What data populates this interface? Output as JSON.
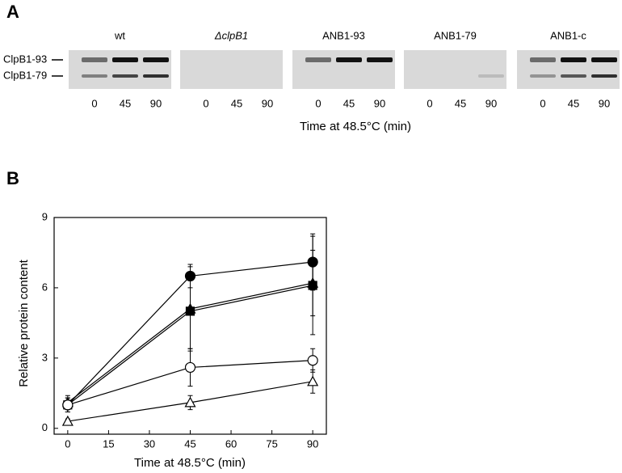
{
  "panel_a": {
    "label": "A",
    "blots": [
      {
        "title": "wt",
        "lanes": [
          "0",
          "45",
          "90"
        ]
      },
      {
        "title": "ΔclpB1",
        "lanes": [
          "0",
          "45",
          "90"
        ]
      },
      {
        "title": "ANB1-93",
        "lanes": [
          "0",
          "45",
          "90"
        ]
      },
      {
        "title": "ANB1-79",
        "lanes": [
          "0",
          "45",
          "90"
        ]
      },
      {
        "title": "ANB1-c",
        "lanes": [
          "0",
          "45",
          "90"
        ]
      }
    ],
    "rows": [
      "ClpB1-93",
      "ClpB1-79"
    ],
    "xlabel": "Time at 48.5°C (min)"
  },
  "chart_data": {
    "type": "line",
    "panel_label": "B",
    "xlabel": "Time at 48.5°C (min)",
    "ylabel": "Relative protein content",
    "x": [
      0,
      45,
      90
    ],
    "series": [
      {
        "color": "#000000",
        "marker": "circle",
        "filled": true,
        "values": [
          1.0,
          6.5,
          7.1
        ],
        "errors": [
          0.3,
          0.5,
          1.2
        ]
      },
      {
        "color": "#000000",
        "marker": "triangle",
        "filled": true,
        "values": [
          1.1,
          5.1,
          6.2
        ],
        "errors": [
          0.3,
          1.8,
          1.4
        ]
      },
      {
        "color": "#000000",
        "marker": "square",
        "filled": true,
        "values": [
          1.0,
          5.0,
          6.1
        ],
        "errors": [
          0.3,
          1.6,
          2.1
        ]
      },
      {
        "color": "#000000",
        "marker": "circle",
        "filled": false,
        "values": [
          1.0,
          2.6,
          2.9
        ],
        "errors": [
          0.3,
          0.8,
          0.5
        ]
      },
      {
        "color": "#000000",
        "marker": "triangle",
        "filled": false,
        "values": [
          0.3,
          1.1,
          2.0
        ],
        "errors": [
          0.1,
          0.3,
          0.5
        ]
      }
    ],
    "xlim": [
      -5,
      95
    ],
    "ylim": [
      -0.25,
      9
    ],
    "xticks": [
      0,
      15,
      30,
      45,
      60,
      75,
      90
    ],
    "yticks": [
      0,
      3,
      6,
      9
    ]
  }
}
